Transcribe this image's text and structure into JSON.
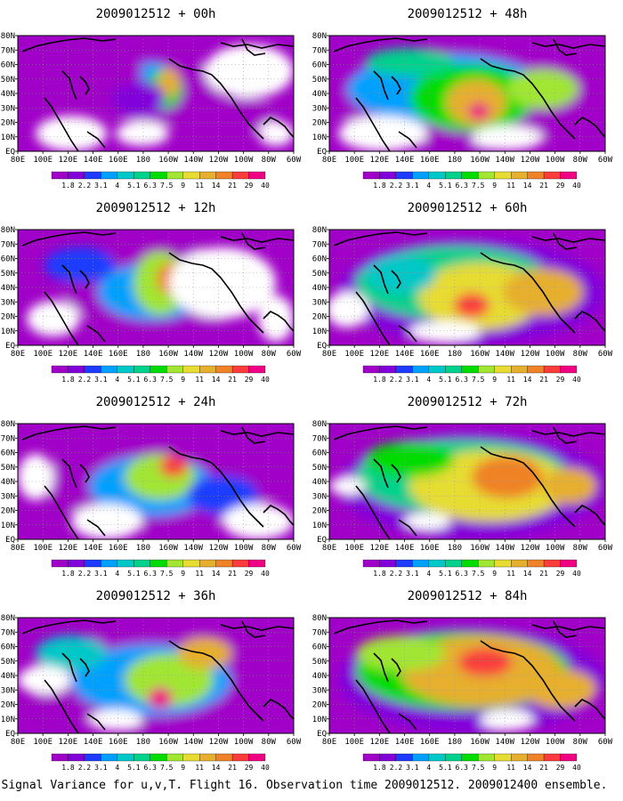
{
  "figure": {
    "caption": "Signal Variance for u,v,T. Flight 16. Observation time 2009012512. 2009012400 ensemble.",
    "x_tick_labels": [
      "80E",
      "100E",
      "120E",
      "140E",
      "160E",
      "180",
      "160W",
      "140W",
      "120W",
      "100W",
      "80W",
      "60W"
    ],
    "y_tick_labels": [
      "EQ",
      "10N",
      "20N",
      "30N",
      "40N",
      "50N",
      "60N",
      "70N",
      "80N"
    ],
    "colorbar": {
      "labels": [
        "1.8",
        "2.2",
        "3.1",
        "4",
        "5.1",
        "6.3",
        "7.5",
        "9",
        "11",
        "14",
        "21",
        "29",
        "40"
      ],
      "colors": [
        "#a000c8",
        "#8200dc",
        "#1e3cff",
        "#00a0ff",
        "#00c8c8",
        "#00d28c",
        "#00dc00",
        "#a0e632",
        "#e6dc32",
        "#e6af2d",
        "#f08228",
        "#fa3c3c",
        "#f00082"
      ]
    },
    "panels": [
      {
        "title": "2009012512 + 00h"
      },
      {
        "title": "2009012512 + 48h"
      },
      {
        "title": "2009012512 + 12h"
      },
      {
        "title": "2009012512 + 60h"
      },
      {
        "title": "2009012512 + 24h"
      },
      {
        "title": "2009012512 + 72h"
      },
      {
        "title": "2009012512 + 36h"
      },
      {
        "title": "2009012512 + 84h"
      }
    ]
  }
}
